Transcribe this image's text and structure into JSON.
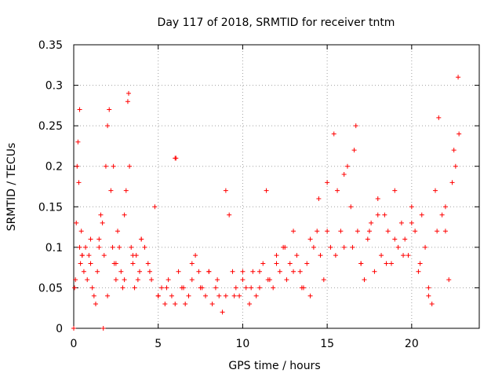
{
  "chart_data": {
    "type": "scatter",
    "title": "Day 117 of 2018, SRMTID for receiver tntm",
    "xlabel": "GPS time / hours",
    "ylabel": "SRMTID / TECUs",
    "xlim": [
      0,
      24
    ],
    "ylim": [
      0,
      0.35
    ],
    "xticks": [
      0,
      5,
      10,
      15,
      20
    ],
    "yticks": [
      0,
      0.05,
      0.1,
      0.15,
      0.2,
      0.25,
      0.3,
      0.35
    ],
    "grid": true,
    "marker": "+",
    "series": [
      {
        "name": "SRMTID",
        "color": "#ff0000",
        "x": [
          0.0,
          0.05,
          1.75,
          0.15,
          0.2,
          0.25,
          0.3,
          0.35,
          0.4,
          0.45,
          0.5,
          0.6,
          0.7,
          0.8,
          0.9,
          1.0,
          1.1,
          1.2,
          1.3,
          1.4,
          1.5,
          1.6,
          1.7,
          1.8,
          1.9,
          2.0,
          2.1,
          2.2,
          2.3,
          2.4,
          2.5,
          2.6,
          2.7,
          2.8,
          2.9,
          3.0,
          3.1,
          3.2,
          3.3,
          3.4,
          3.5,
          3.6,
          3.7,
          3.8,
          3.9,
          4.0,
          4.2,
          4.4,
          4.6,
          4.8,
          5.0,
          5.2,
          5.4,
          5.6,
          5.8,
          6.0,
          6.2,
          6.4,
          6.6,
          6.8,
          7.0,
          7.2,
          7.4,
          7.6,
          7.8,
          8.0,
          8.2,
          8.4,
          8.6,
          8.8,
          9.0,
          9.2,
          9.4,
          9.6,
          9.8,
          10.0,
          10.2,
          10.4,
          10.6,
          10.8,
          11.0,
          11.2,
          11.4,
          11.6,
          11.8,
          12.0,
          12.2,
          12.4,
          12.6,
          12.8,
          13.0,
          13.2,
          13.4,
          13.6,
          13.8,
          14.0,
          14.2,
          14.4,
          14.6,
          14.8,
          15.0,
          15.2,
          15.4,
          15.6,
          15.8,
          16.0,
          16.2,
          16.4,
          16.6,
          16.8,
          17.0,
          17.2,
          17.4,
          17.6,
          17.8,
          18.0,
          18.2,
          18.4,
          18.6,
          18.8,
          19.0,
          19.2,
          19.4,
          19.6,
          19.8,
          20.0,
          20.2,
          20.4,
          20.6,
          20.8,
          21.0,
          21.2,
          21.4,
          21.6,
          21.8,
          22.0,
          22.2,
          22.4,
          22.6,
          22.8,
          3.25,
          2.35,
          0.35,
          6.05,
          16.7,
          22.75,
          0.1,
          0.5,
          1.0,
          1.5,
          2.0,
          2.5,
          3.0,
          3.5,
          4.0,
          4.5,
          5.0,
          5.5,
          6.0,
          6.5,
          7.0,
          7.5,
          8.0,
          8.5,
          9.0,
          9.5,
          10.0,
          10.5,
          11.0,
          11.5,
          12.0,
          12.5,
          13.0,
          13.5,
          14.0,
          14.5,
          15.0,
          15.5,
          16.0,
          16.5,
          17.0,
          17.5,
          18.0,
          18.5,
          19.0,
          19.5,
          20.0,
          20.5,
          21.0,
          21.5,
          22.0,
          22.5
        ],
        "y": [
          0.0,
          0.05,
          0.0,
          0.13,
          0.2,
          0.23,
          0.18,
          0.1,
          0.08,
          0.12,
          0.09,
          0.07,
          0.1,
          0.06,
          0.09,
          0.08,
          0.05,
          0.04,
          0.03,
          0.07,
          0.11,
          0.14,
          0.13,
          0.09,
          0.2,
          0.25,
          0.27,
          0.17,
          0.1,
          0.08,
          0.06,
          0.12,
          0.1,
          0.07,
          0.05,
          0.14,
          0.17,
          0.28,
          0.2,
          0.1,
          0.08,
          0.05,
          0.09,
          0.06,
          0.07,
          0.11,
          0.1,
          0.08,
          0.06,
          0.15,
          0.04,
          0.05,
          0.03,
          0.06,
          0.04,
          0.21,
          0.07,
          0.05,
          0.03,
          0.04,
          0.06,
          0.09,
          0.07,
          0.05,
          0.04,
          0.07,
          0.03,
          0.05,
          0.04,
          0.02,
          0.17,
          0.14,
          0.07,
          0.05,
          0.04,
          0.06,
          0.05,
          0.03,
          0.07,
          0.04,
          0.05,
          0.08,
          0.17,
          0.06,
          0.05,
          0.09,
          0.07,
          0.1,
          0.06,
          0.08,
          0.12,
          0.09,
          0.07,
          0.05,
          0.08,
          0.04,
          0.1,
          0.12,
          0.09,
          0.06,
          0.18,
          0.1,
          0.24,
          0.17,
          0.12,
          0.1,
          0.2,
          0.15,
          0.22,
          0.12,
          0.08,
          0.06,
          0.11,
          0.13,
          0.07,
          0.16,
          0.09,
          0.14,
          0.12,
          0.08,
          0.17,
          0.1,
          0.13,
          0.11,
          0.09,
          0.15,
          0.12,
          0.07,
          0.14,
          0.1,
          0.05,
          0.03,
          0.17,
          0.26,
          0.14,
          0.12,
          0.06,
          0.18,
          0.2,
          0.24,
          0.29,
          0.2,
          0.27,
          0.21,
          0.25,
          0.31,
          0.06,
          0.09,
          0.11,
          0.1,
          0.04,
          0.08,
          0.06,
          0.09,
          0.11,
          0.07,
          0.04,
          0.05,
          0.03,
          0.05,
          0.08,
          0.05,
          0.07,
          0.06,
          0.04,
          0.04,
          0.07,
          0.05,
          0.07,
          0.06,
          0.08,
          0.1,
          0.07,
          0.05,
          0.11,
          0.16,
          0.12,
          0.09,
          0.19,
          0.1,
          0.08,
          0.12,
          0.14,
          0.08,
          0.11,
          0.09,
          0.13,
          0.08,
          0.04,
          0.12,
          0.15,
          0.22
        ]
      }
    ]
  }
}
